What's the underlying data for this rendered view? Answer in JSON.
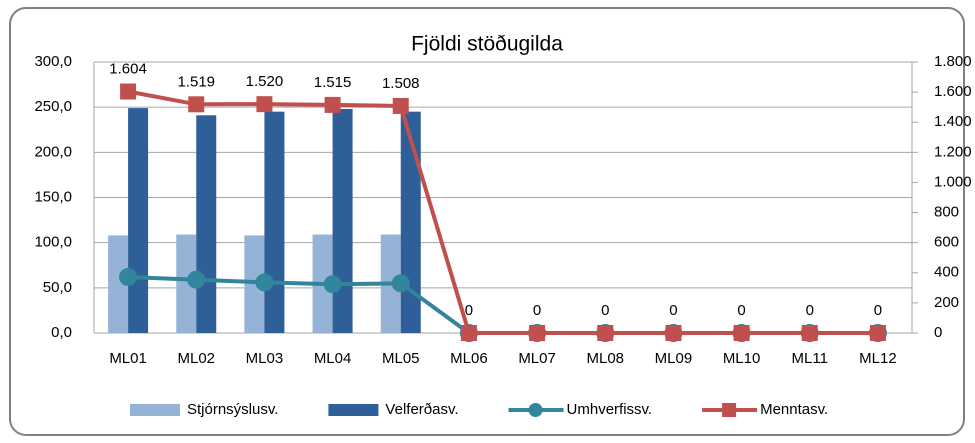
{
  "chart_data": {
    "type": "bar_line",
    "title": "Fjöldi stöðugilda",
    "categories": [
      "ML01",
      "ML02",
      "ML03",
      "ML04",
      "ML05",
      "ML06",
      "ML07",
      "ML08",
      "ML09",
      "ML10",
      "ML11",
      "ML12"
    ],
    "series": [
      {
        "name": "Stjórnsýslusv.",
        "type": "bar",
        "color": "#95b3d7",
        "values": [
          108,
          109,
          108,
          109,
          109,
          0,
          0,
          0,
          0,
          0,
          0,
          0
        ]
      },
      {
        "name": "Velferðasv.",
        "type": "bar",
        "color": "#2f5f98",
        "values": [
          249,
          241,
          245,
          248,
          245,
          0,
          0,
          0,
          0,
          0,
          0,
          0
        ]
      },
      {
        "name": "Umhverfissv.",
        "type": "line",
        "color": "#31859c",
        "values": [
          62,
          59,
          56,
          54,
          55,
          0,
          0,
          0,
          0,
          0,
          0,
          0
        ]
      },
      {
        "name": "Menntasv.",
        "type": "line",
        "axis": "y2",
        "color": "#c0504d",
        "values": [
          1604,
          1519,
          1520,
          1515,
          1508,
          0,
          0,
          0,
          0,
          0,
          0,
          0
        ],
        "value_labels": [
          "1.604",
          "1.519",
          "1.520",
          "1.515",
          "1.508",
          "0",
          "0",
          "0",
          "0",
          "0",
          "0",
          "0"
        ]
      }
    ],
    "ylim": [
      0,
      300
    ],
    "yticks": [
      {
        "value": 0,
        "label": "0,0"
      },
      {
        "value": 50,
        "label": "50,0"
      },
      {
        "value": 100,
        "label": "100,0"
      },
      {
        "value": 150,
        "label": "150,0"
      },
      {
        "value": 200,
        "label": "200,0"
      },
      {
        "value": 250,
        "label": "250,0"
      },
      {
        "value": 300,
        "label": "300,0"
      }
    ],
    "y2lim": [
      0,
      1800
    ],
    "y2ticks": [
      0,
      200,
      400,
      600,
      800,
      {
        "value": 1000,
        "label": "1.000"
      },
      {
        "value": 1200,
        "label": "1.200"
      },
      {
        "value": 1400,
        "label": "1.400"
      },
      {
        "value": 1600,
        "label": "1.600"
      },
      {
        "value": 1800,
        "label": "1.800"
      }
    ],
    "grid": true,
    "legend": "bottom"
  }
}
